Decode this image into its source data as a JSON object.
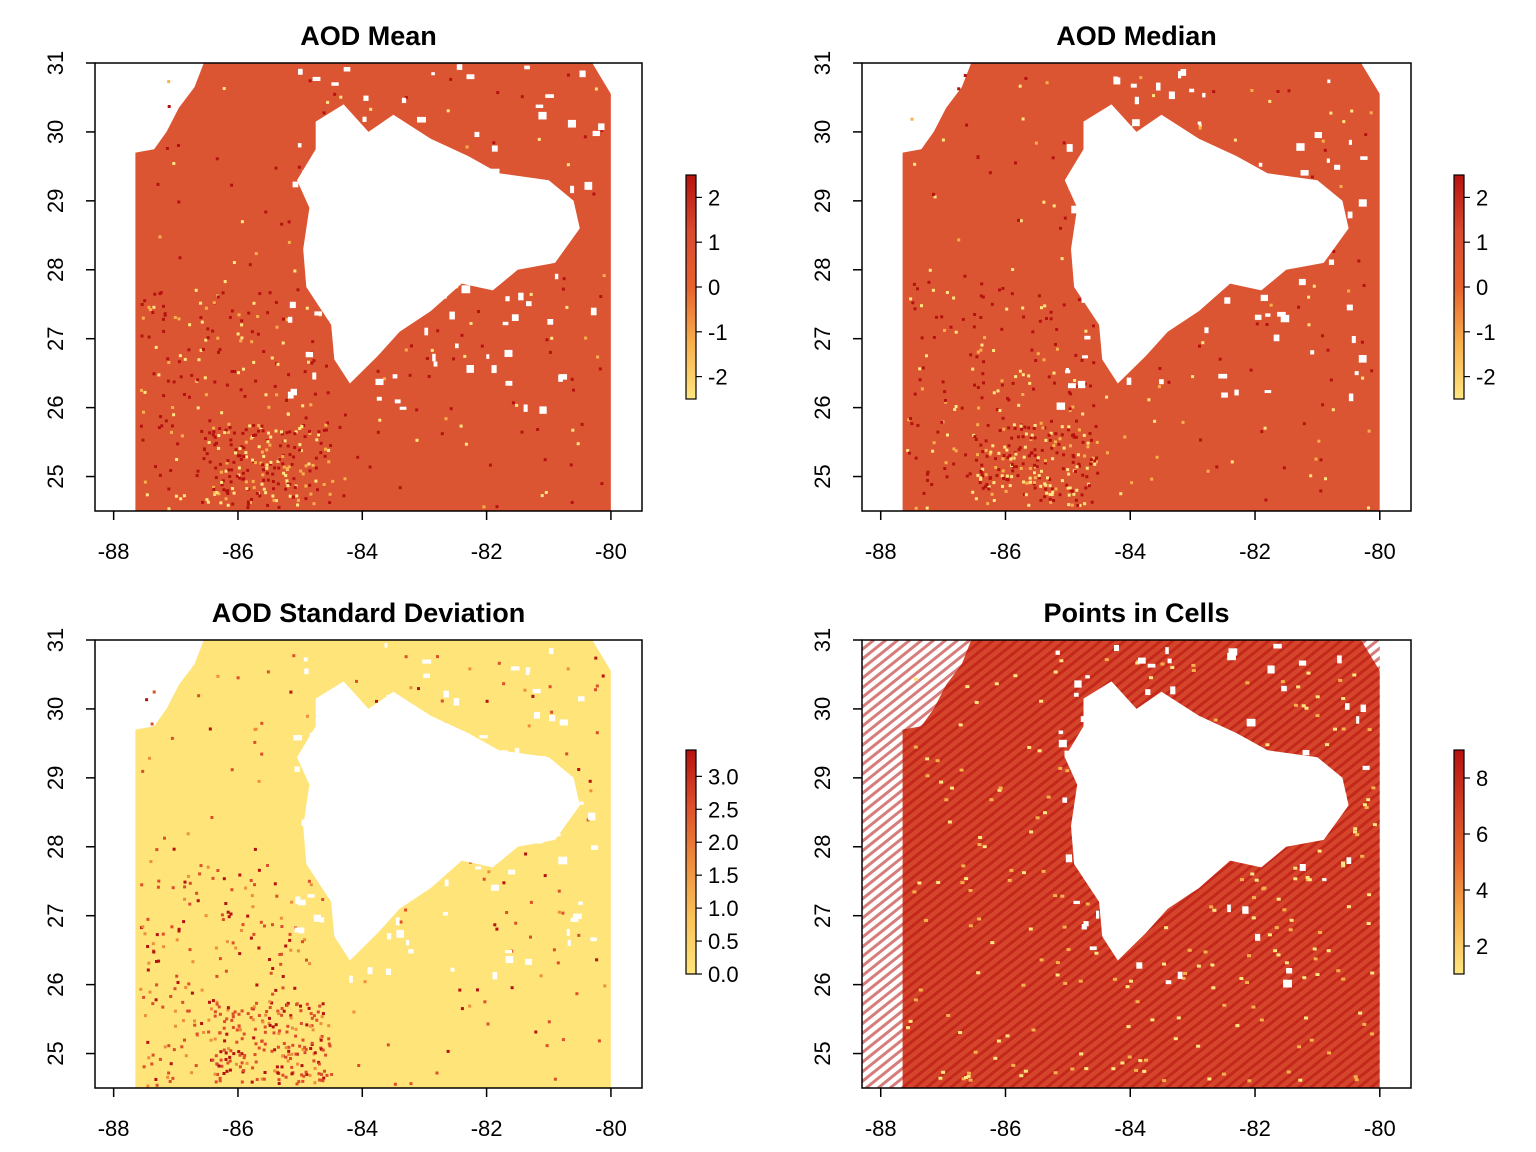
{
  "figure": {
    "panels": [
      {
        "title": "AOD Mean",
        "palette": "mean",
        "colorbar_ticks": [
          "2",
          "1",
          "0",
          "-1",
          "-2"
        ],
        "colorbar_values": [
          2,
          1,
          0,
          -1,
          -2
        ],
        "colorbar_range": [
          -2.5,
          2.5
        ]
      },
      {
        "title": "AOD Median",
        "palette": "mean",
        "colorbar_ticks": [
          "2",
          "1",
          "0",
          "-1",
          "-2"
        ],
        "colorbar_values": [
          2,
          1,
          0,
          -1,
          -2
        ],
        "colorbar_range": [
          -2.5,
          2.5
        ]
      },
      {
        "title": "AOD Standard Deviation",
        "palette": "sd",
        "colorbar_ticks": [
          "3.0",
          "2.5",
          "2.0",
          "1.5",
          "1.0",
          "0.5",
          "0.0"
        ],
        "colorbar_values": [
          3.0,
          2.5,
          2.0,
          1.5,
          1.0,
          0.5,
          0.0
        ],
        "colorbar_range": [
          0,
          3.4
        ]
      },
      {
        "title": "Points in Cells",
        "palette": "points",
        "colorbar_ticks": [
          "8",
          "6",
          "4",
          "2"
        ],
        "colorbar_values": [
          8,
          6,
          4,
          2
        ],
        "colorbar_range": [
          1,
          9
        ]
      }
    ]
  },
  "chart_data": {
    "type": "heatmap",
    "layout": "2x2 grid of raster maps, each with a vertical colorbar legend on the right",
    "x_range": [
      -88.3,
      -79.5
    ],
    "y_range": [
      24.5,
      31.0
    ],
    "x_ticks": [
      -88,
      -86,
      -84,
      -82,
      -80
    ],
    "x_tick_labels": [
      "-88",
      "-86",
      "-84",
      "-82",
      "-80"
    ],
    "y_ticks": [
      25,
      26,
      27,
      28,
      29,
      30,
      31
    ],
    "y_tick_labels": [
      "25",
      "26",
      "27",
      "28",
      "29",
      "30",
      "31"
    ],
    "data_extent": {
      "x": [
        -87.65,
        -80.0
      ],
      "y": [
        24.5,
        31.0
      ]
    },
    "colormap": {
      "mean": [
        "#ffe680",
        "#f8b04c",
        "#e8622e",
        "#d94a2e",
        "#b5120f"
      ],
      "sd": [
        "#ffe47a",
        "#f9c35a",
        "#ee8d3c",
        "#dd4f2a",
        "#b5120f"
      ],
      "points": [
        "#ffe680",
        "#f6b04b",
        "#e86a2e",
        "#d03f22",
        "#b5120f"
      ]
    },
    "missing_color": "#ffffff",
    "panels": [
      "AOD Mean",
      "AOD Median",
      "AOD Standard Deviation",
      "Points in Cells"
    ]
  }
}
